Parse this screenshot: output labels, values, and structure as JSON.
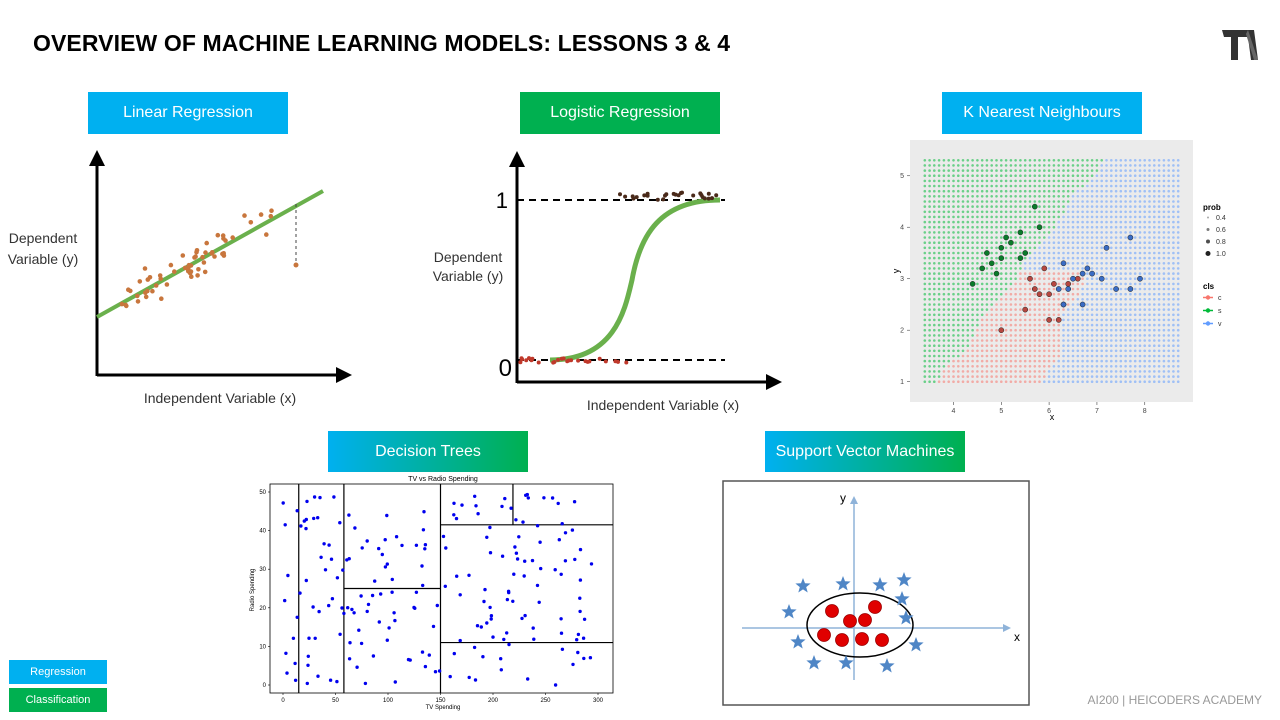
{
  "title": "OVERVIEW OF MACHINE LEARNING MODELS: LESSONS 3 & 4",
  "logo_icon": "heicoders-logo-icon",
  "footer": "AI200 | HEICODERS ACADEMY",
  "legend": {
    "regression": "Regression",
    "classification": "Classification"
  },
  "colors": {
    "regression": "#00b0f0",
    "classification": "#00b050"
  },
  "panels": {
    "linear": {
      "label": "Linear Regression",
      "ylabel_line1": "Dependent",
      "ylabel_line2": "Variable (y)",
      "xlabel": "Independent  Variable (x)"
    },
    "logistic": {
      "label": "Logistic Regression",
      "ylabel_line1": "Dependent",
      "ylabel_line2": "Variable (y)",
      "xlabel": "Independent  Variable (x)",
      "tick_one": "1",
      "tick_zero": "0"
    },
    "knn": {
      "label": "K Nearest Neighbours",
      "xlabel": "x",
      "ylabel": "y",
      "x_ticks": [
        "4",
        "5",
        "6",
        "7",
        "8"
      ],
      "y_ticks": [
        "1",
        "2",
        "3",
        "4",
        "5"
      ],
      "legend_prob_title": "prob",
      "legend_prob": [
        "0.4",
        "0.6",
        "0.8",
        "1.0"
      ],
      "legend_cls_title": "cls",
      "legend_cls": [
        "c",
        "s",
        "v"
      ]
    },
    "tree": {
      "label": "Decision Trees",
      "chart_title": "TV vs Radio Spending",
      "xlabel": "TV Spending",
      "ylabel": "Radio Spending",
      "x_ticks": [
        "0",
        "50",
        "100",
        "150",
        "200",
        "250",
        "300"
      ],
      "y_ticks": [
        "0",
        "10",
        "20",
        "30",
        "40",
        "50"
      ]
    },
    "svm": {
      "label": "Support Vector Machines",
      "xlabel": "x",
      "ylabel": "y"
    }
  }
}
